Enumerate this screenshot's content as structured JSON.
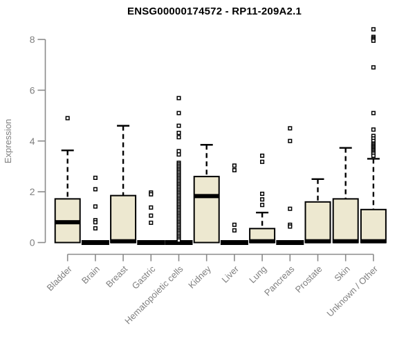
{
  "chart_data": {
    "type": "boxplot",
    "title": "ENSG00000174572 - RP11-209A2.1",
    "ylabel": "Expression",
    "xlabel": "",
    "ylim": [
      0,
      8
    ],
    "yticks": [
      0,
      2,
      4,
      6,
      8
    ],
    "grid": false,
    "legend": "none",
    "categories": [
      "Bladder",
      "Brain",
      "Breast",
      "Gastric",
      "Hematopoietic cells",
      "Kidney",
      "Liver",
      "Lung",
      "Pancreas",
      "Prostate",
      "Skin",
      "Unknown / Other"
    ],
    "series": [
      {
        "name": "Bladder",
        "whisker_low": 0,
        "q1": 0,
        "median": 0.8,
        "q3": 1.72,
        "whisker_high": 3.63,
        "outliers": [
          4.9
        ]
      },
      {
        "name": "Brain",
        "whisker_low": 0,
        "q1": 0,
        "median": 0,
        "q3": 0.05,
        "whisker_high": 0.05,
        "outliers": [
          2.55,
          2.1,
          1.42,
          0.88,
          0.8,
          0.56
        ]
      },
      {
        "name": "Breast",
        "whisker_low": 0,
        "q1": 0,
        "median": 0.05,
        "q3": 1.85,
        "whisker_high": 4.6,
        "outliers": []
      },
      {
        "name": "Gastric",
        "whisker_low": 0,
        "q1": 0,
        "median": 0,
        "q3": 0.05,
        "whisker_high": 0.05,
        "outliers": [
          1.97,
          1.9,
          1.38,
          1.06,
          0.78
        ]
      },
      {
        "name": "Hematopoietic cells",
        "whisker_low": 0,
        "q1": 0,
        "median": 0,
        "q3": 0.05,
        "whisker_high": 0.05,
        "outliers": [
          5.69,
          5.1,
          4.6,
          4.32,
          4.15,
          3.6,
          3.47,
          3.14,
          3.08,
          3.02,
          2.96,
          2.9,
          2.84,
          2.78,
          2.72,
          2.66,
          2.6,
          2.54,
          2.48,
          2.42,
          2.36,
          2.3,
          2.24,
          2.18,
          2.12,
          2.06,
          2.0,
          1.94,
          1.88,
          1.82,
          1.76,
          1.7,
          1.64,
          1.58,
          1.52,
          1.46,
          1.4,
          1.34,
          1.28,
          1.22,
          1.16,
          1.1,
          1.04,
          0.98,
          0.92,
          0.86,
          0.8,
          0.74,
          0.68,
          0.62,
          0.56,
          0.5,
          0.44,
          0.38,
          0.32,
          0.26,
          0.2,
          0.14,
          0.08
        ]
      },
      {
        "name": "Kidney",
        "whisker_low": 0,
        "q1": 0,
        "median": 1.83,
        "q3": 2.6,
        "whisker_high": 3.85,
        "outliers": []
      },
      {
        "name": "Liver",
        "whisker_low": 0,
        "q1": 0,
        "median": 0,
        "q3": 0.05,
        "whisker_high": 0.05,
        "outliers": [
          3.03,
          2.85,
          0.7,
          0.48
        ]
      },
      {
        "name": "Lung",
        "whisker_low": 0,
        "q1": 0,
        "median": 0.05,
        "q3": 0.55,
        "whisker_high": 1.18,
        "outliers": [
          3.42,
          3.18,
          1.92,
          1.7,
          1.48
        ]
      },
      {
        "name": "Pancreas",
        "whisker_low": 0,
        "q1": 0,
        "median": 0,
        "q3": 0.05,
        "whisker_high": 0.05,
        "outliers": [
          4.5,
          4.0,
          1.33,
          0.7,
          0.63
        ]
      },
      {
        "name": "Prostate",
        "whisker_low": 0,
        "q1": 0,
        "median": 0.05,
        "q3": 1.6,
        "whisker_high": 2.5,
        "outliers": []
      },
      {
        "name": "Skin",
        "whisker_low": 0,
        "q1": 0,
        "median": 0.05,
        "q3": 1.72,
        "whisker_high": 3.73,
        "outliers": []
      },
      {
        "name": "Unknown / Other",
        "whisker_low": 0,
        "q1": 0,
        "median": 0.05,
        "q3": 1.3,
        "whisker_high": 3.3,
        "outliers": [
          8.4,
          8.1,
          8.05,
          8.0,
          7.95,
          6.9,
          5.1,
          4.45,
          4.2,
          4.1,
          4.0,
          3.9,
          3.85,
          3.8,
          3.75,
          3.7,
          3.65,
          3.6,
          3.55,
          3.5,
          3.42
        ]
      }
    ],
    "colors": {
      "box_fill": "#EDE8D0",
      "box_stroke": "#000000",
      "median": "#000000",
      "outlier_stroke": "#000000",
      "outlier_fill": "#ffffff",
      "axis": "#8a8a8a",
      "tick_label": "#7f7f7f",
      "title": "#000000"
    }
  }
}
